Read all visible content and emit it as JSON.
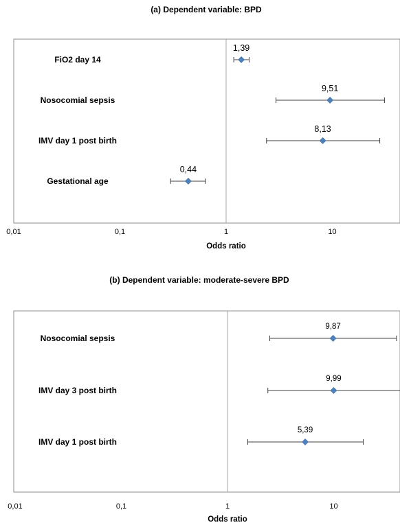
{
  "colors": {
    "marker": "#4F81BD",
    "whisker": "#404040",
    "frame": "#8C8C8C",
    "refline": "#A6A6A6"
  },
  "chart_data": [
    {
      "type": "forest",
      "title": "(a)  Dependent variable: BPD",
      "xlabel": "Odds ratio",
      "xscale": "log",
      "xlim": [
        0.01,
        45
      ],
      "xticks": [
        0.01,
        0.1,
        1,
        10
      ],
      "xtick_labels": [
        "0,01",
        "0,1",
        "1",
        "10"
      ],
      "reference_line": 1,
      "rows": [
        {
          "label": "FiO2 day 14",
          "or": 1.39,
          "or_label": "1,39",
          "ci": [
            1.18,
            1.65
          ]
        },
        {
          "label": "Nosocomial sepsis",
          "or": 9.51,
          "or_label": "9,51",
          "ci": [
            2.95,
            31
          ]
        },
        {
          "label": "IMV day 1 post birth",
          "or": 8.13,
          "or_label": "8,13",
          "ci": [
            2.4,
            28
          ]
        },
        {
          "label": "Gestational age",
          "or": 0.44,
          "or_label": "0,44",
          "ci": [
            0.3,
            0.64
          ]
        }
      ]
    },
    {
      "type": "forest",
      "title": "(b)  Dependent variable: moderate-severe BPD",
      "xlabel": "Odds ratio",
      "xscale": "log",
      "xlim": [
        0.01,
        45
      ],
      "xticks": [
        0.01,
        0.1,
        1,
        10
      ],
      "xtick_labels": [
        "0,01",
        "0,1",
        "1",
        "10"
      ],
      "reference_line": 1,
      "rows": [
        {
          "label": "Nosocomial sepsis",
          "or": 9.87,
          "or_label": "9,87",
          "ci": [
            2.5,
            39
          ]
        },
        {
          "label": "IMV day 3 post birth",
          "or": 9.99,
          "or_label": "9,99",
          "ci": [
            2.4,
            43
          ]
        },
        {
          "label": "IMV day 1 post birth",
          "or": 5.39,
          "or_label": "5,39",
          "ci": [
            1.55,
            19
          ]
        }
      ]
    }
  ]
}
